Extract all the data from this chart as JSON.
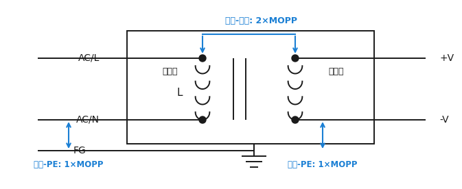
{
  "bg_color": "#ffffff",
  "line_color": "#1a1a1a",
  "blue_color": "#1a7fd4",
  "labels": {
    "ACL": "AC/L",
    "ACN": "AC/N",
    "FG": "FG",
    "PV": "+V",
    "NV": "-V",
    "primary": "一次側",
    "secondary": "二次側",
    "L": "L",
    "top_label": "输入-输出: 2×MOPP",
    "left_label": "输入-PE: 1×MOPP",
    "right_label": "输出-PE: 1×MOPP"
  }
}
